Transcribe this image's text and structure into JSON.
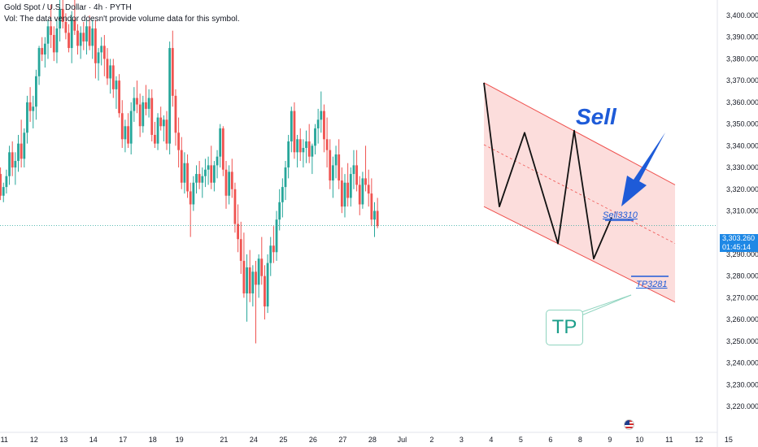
{
  "header": {
    "title": "Gold Spot / U.S. Dollar · 4h · PYTH",
    "subtitle": "Vol: The data vendor doesn't provide volume data for this symbol."
  },
  "price_tag": {
    "price": "3,303.260",
    "countdown": "01:45:14"
  },
  "annotations": {
    "sell": "Sell",
    "sell_level": "Sell3310",
    "tp_level": "TP3281",
    "tp_box": "TP"
  },
  "colors": {
    "up": "#26a69a",
    "down": "#ef5350",
    "channel": "#ef5350",
    "channel_fill": "rgba(239,83,80,0.20)",
    "annotation_blue": "#1e5bd8",
    "price_line": "#26a69a"
  },
  "chart_data": {
    "type": "candlestick",
    "ylim": [
      3215,
      3405
    ],
    "y_ticks": [
      "3,400.000",
      "3,390.000",
      "3,380.000",
      "3,370.000",
      "3,360.000",
      "3,350.000",
      "3,340.000",
      "3,330.000",
      "3,320.000",
      "3,310.000",
      "3,290.000",
      "3,280.000",
      "3,270.000",
      "3,260.000",
      "3,250.000",
      "3,240.000",
      "3,230.000",
      "3,220.000"
    ],
    "y_tick_values": [
      3400,
      3390,
      3380,
      3370,
      3360,
      3350,
      3340,
      3330,
      3320,
      3310,
      3290,
      3280,
      3270,
      3260,
      3250,
      3240,
      3230,
      3220
    ],
    "x_ticks": [
      "11",
      "12",
      "13",
      "14",
      "17",
      "18",
      "19",
      "21",
      "24",
      "25",
      "26",
      "27",
      "28",
      "Jul",
      "2",
      "3",
      "4",
      "5",
      "6",
      "8",
      "9",
      "10",
      "11",
      "12",
      "15"
    ],
    "x_tick_index": [
      5,
      15,
      25,
      35,
      45,
      55,
      64,
      79,
      89,
      99,
      109,
      119,
      129,
      139,
      149,
      159,
      169,
      179,
      189,
      199,
      209,
      219,
      229,
      239,
      249
    ],
    "last_price": 3303.26,
    "candles": [
      [
        3306,
        3319,
        3302,
        3318
      ],
      [
        3318,
        3328,
        3313,
        3325
      ],
      [
        3325,
        3333,
        3322,
        3330
      ],
      [
        3330,
        3336,
        3324,
        3327
      ],
      [
        3327,
        3330,
        3315,
        3317
      ],
      [
        3317,
        3323,
        3314,
        3321
      ],
      [
        3321,
        3329,
        3318,
        3326
      ],
      [
        3326,
        3340,
        3322,
        3337
      ],
      [
        3337,
        3342,
        3326,
        3330
      ],
      [
        3330,
        3337,
        3322,
        3333
      ],
      [
        3333,
        3345,
        3328,
        3341
      ],
      [
        3341,
        3352,
        3330,
        3334
      ],
      [
        3334,
        3348,
        3330,
        3346
      ],
      [
        3346,
        3363,
        3341,
        3360
      ],
      [
        3360,
        3367,
        3351,
        3356
      ],
      [
        3356,
        3363,
        3348,
        3358
      ],
      [
        3358,
        3375,
        3352,
        3372
      ],
      [
        3372,
        3386,
        3368,
        3385
      ],
      [
        3385,
        3390,
        3379,
        3382
      ],
      [
        3382,
        3390,
        3376,
        3387
      ],
      [
        3387,
        3398,
        3380,
        3395
      ],
      [
        3395,
        3405,
        3385,
        3391
      ],
      [
        3391,
        3395,
        3379,
        3383
      ],
      [
        3383,
        3398,
        3378,
        3394
      ],
      [
        3394,
        3408,
        3388,
        3403
      ],
      [
        3403,
        3409,
        3394,
        3397
      ],
      [
        3397,
        3401,
        3389,
        3392
      ],
      [
        3392,
        3396,
        3383,
        3385
      ],
      [
        3385,
        3402,
        3378,
        3398
      ],
      [
        3398,
        3408,
        3391,
        3393
      ],
      [
        3393,
        3396,
        3382,
        3386
      ],
      [
        3386,
        3395,
        3380,
        3392
      ],
      [
        3392,
        3397,
        3384,
        3388
      ],
      [
        3388,
        3398,
        3382,
        3395
      ],
      [
        3395,
        3400,
        3384,
        3386
      ],
      [
        3386,
        3398,
        3380,
        3394
      ],
      [
        3394,
        3398,
        3371,
        3378
      ],
      [
        3378,
        3385,
        3370,
        3383
      ],
      [
        3383,
        3390,
        3377,
        3386
      ],
      [
        3386,
        3391,
        3372,
        3380
      ],
      [
        3380,
        3385,
        3368,
        3371
      ],
      [
        3371,
        3380,
        3364,
        3377
      ],
      [
        3377,
        3380,
        3362,
        3366
      ],
      [
        3366,
        3372,
        3357,
        3370
      ],
      [
        3370,
        3373,
        3353,
        3355
      ],
      [
        3355,
        3361,
        3339,
        3343
      ],
      [
        3343,
        3352,
        3337,
        3349
      ],
      [
        3349,
        3355,
        3339,
        3341
      ],
      [
        3341,
        3360,
        3336,
        3356
      ],
      [
        3356,
        3367,
        3351,
        3362
      ],
      [
        3362,
        3370,
        3355,
        3359
      ],
      [
        3359,
        3364,
        3344,
        3349
      ],
      [
        3349,
        3363,
        3346,
        3360
      ],
      [
        3360,
        3368,
        3354,
        3357
      ],
      [
        3357,
        3366,
        3353,
        3362
      ],
      [
        3362,
        3366,
        3342,
        3345
      ],
      [
        3345,
        3351,
        3339,
        3341
      ],
      [
        3341,
        3355,
        3338,
        3353
      ],
      [
        3353,
        3358,
        3347,
        3349
      ],
      [
        3349,
        3354,
        3342,
        3352
      ],
      [
        3352,
        3356,
        3338,
        3341
      ],
      [
        3341,
        3388,
        3336,
        3385
      ],
      [
        3385,
        3393,
        3358,
        3363
      ],
      [
        3363,
        3366,
        3340,
        3346
      ],
      [
        3346,
        3353,
        3330,
        3338
      ],
      [
        3338,
        3344,
        3320,
        3323
      ],
      [
        3323,
        3337,
        3318,
        3332
      ],
      [
        3332,
        3336,
        3316,
        3319
      ],
      [
        3319,
        3323,
        3298,
        3313
      ],
      [
        3313,
        3326,
        3310,
        3323
      ],
      [
        3323,
        3331,
        3318,
        3327
      ],
      [
        3327,
        3333,
        3320,
        3323
      ],
      [
        3323,
        3330,
        3316,
        3326
      ],
      [
        3326,
        3334,
        3321,
        3329
      ],
      [
        3329,
        3335,
        3322,
        3331
      ],
      [
        3331,
        3340,
        3320,
        3323
      ],
      [
        3323,
        3333,
        3319,
        3331
      ],
      [
        3331,
        3338,
        3325,
        3335
      ],
      [
        3335,
        3350,
        3330,
        3348
      ],
      [
        3348,
        3349,
        3326,
        3329
      ],
      [
        3329,
        3333,
        3311,
        3317
      ],
      [
        3317,
        3331,
        3313,
        3328
      ],
      [
        3328,
        3334,
        3316,
        3320
      ],
      [
        3320,
        3323,
        3300,
        3304
      ],
      [
        3304,
        3313,
        3291,
        3297
      ],
      [
        3297,
        3305,
        3281,
        3287
      ],
      [
        3287,
        3300,
        3270,
        3272
      ],
      [
        3272,
        3290,
        3259,
        3284
      ],
      [
        3284,
        3292,
        3268,
        3272
      ],
      [
        3272,
        3285,
        3266,
        3282
      ],
      [
        3282,
        3287,
        3249,
        3276
      ],
      [
        3276,
        3290,
        3270,
        3288
      ],
      [
        3288,
        3298,
        3276,
        3280
      ],
      [
        3280,
        3285,
        3260,
        3266
      ],
      [
        3266,
        3290,
        3263,
        3286
      ],
      [
        3286,
        3298,
        3280,
        3294
      ],
      [
        3294,
        3303,
        3286,
        3291
      ],
      [
        3291,
        3310,
        3287,
        3306
      ],
      [
        3306,
        3320,
        3301,
        3314
      ],
      [
        3314,
        3325,
        3307,
        3321
      ],
      [
        3321,
        3333,
        3315,
        3330
      ],
      [
        3330,
        3345,
        3325,
        3342
      ],
      [
        3342,
        3358,
        3337,
        3356
      ],
      [
        3356,
        3360,
        3334,
        3337
      ],
      [
        3337,
        3345,
        3330,
        3343
      ],
      [
        3343,
        3348,
        3333,
        3337
      ],
      [
        3337,
        3343,
        3330,
        3339
      ],
      [
        3339,
        3347,
        3332,
        3342
      ],
      [
        3342,
        3350,
        3332,
        3335
      ],
      [
        3335,
        3341,
        3327,
        3340
      ],
      [
        3340,
        3350,
        3336,
        3348
      ],
      [
        3348,
        3357,
        3341,
        3352
      ],
      [
        3352,
        3365,
        3346,
        3356
      ],
      [
        3356,
        3359,
        3337,
        3343
      ],
      [
        3343,
        3353,
        3330,
        3338
      ],
      [
        3338,
        3343,
        3320,
        3324
      ],
      [
        3324,
        3335,
        3316,
        3331
      ],
      [
        3331,
        3340,
        3325,
        3336
      ],
      [
        3336,
        3343,
        3320,
        3324
      ],
      [
        3324,
        3330,
        3309,
        3312
      ],
      [
        3312,
        3327,
        3307,
        3323
      ],
      [
        3323,
        3332,
        3312,
        3316
      ],
      [
        3316,
        3330,
        3312,
        3327
      ],
      [
        3327,
        3338,
        3320,
        3331
      ],
      [
        3331,
        3338,
        3319,
        3322
      ],
      [
        3322,
        3326,
        3308,
        3313
      ],
      [
        3313,
        3328,
        3311,
        3325
      ],
      [
        3325,
        3340,
        3319,
        3322
      ],
      [
        3322,
        3329,
        3312,
        3318
      ],
      [
        3318,
        3325,
        3303,
        3306
      ],
      [
        3306,
        3314,
        3298,
        3310
      ],
      [
        3310,
        3316,
        3302,
        3303
      ]
    ],
    "channel": {
      "upper": [
        [
          0,
          3369
        ],
        [
          1,
          3322
        ]
      ],
      "lower": [
        [
          0,
          3312
        ],
        [
          1,
          3268
        ]
      ]
    }
  }
}
